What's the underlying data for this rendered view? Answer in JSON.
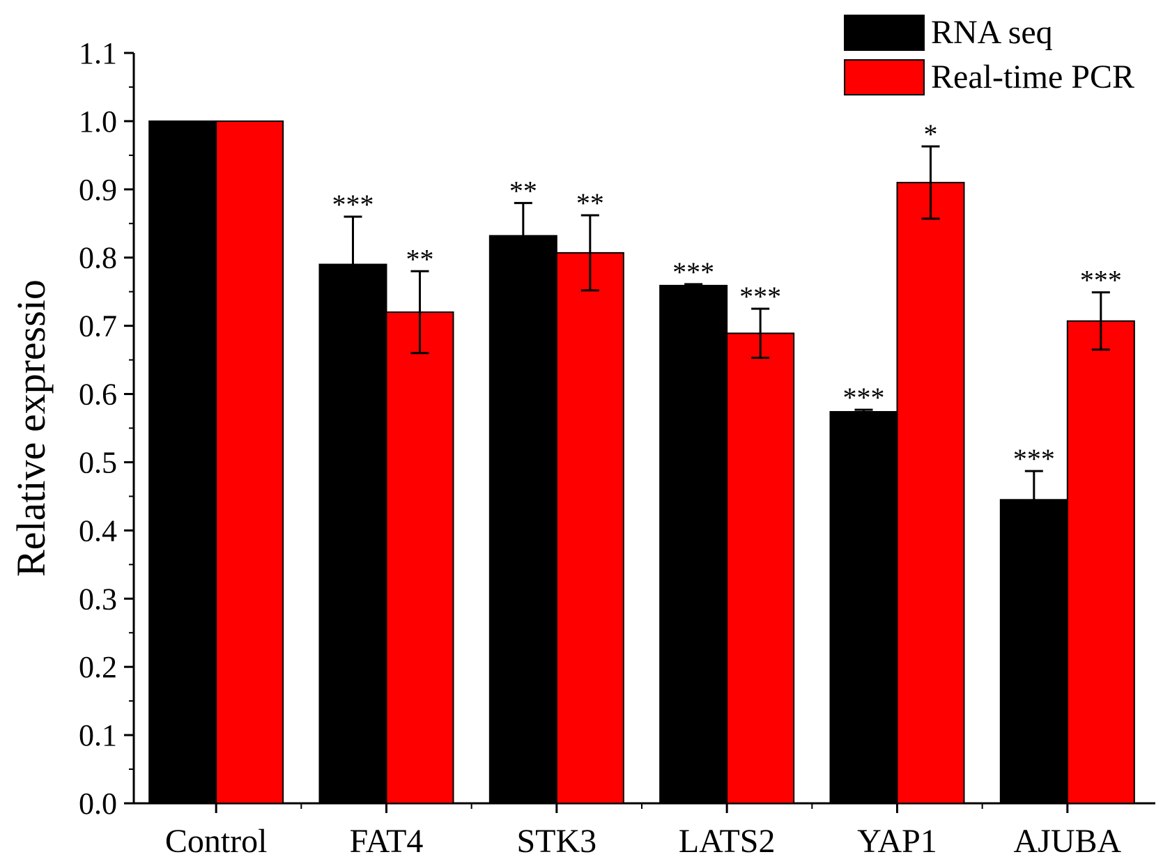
{
  "chart_data": {
    "type": "bar",
    "title": "",
    "xlabel": "",
    "ylabel": "Relative expressio",
    "ylim": [
      0,
      1.1
    ],
    "ytick_step": 0.1,
    "ytick_labels": [
      "0.0",
      "0.1",
      "0.2",
      "0.3",
      "0.4",
      "0.5",
      "0.6",
      "0.7",
      "0.8",
      "0.9",
      "1.0",
      "1.1"
    ],
    "grid": false,
    "legend_position": "top-right",
    "categories": [
      "Control",
      "FAT4",
      "STK3",
      "LATS2",
      "YAP1",
      "AJUBA"
    ],
    "series": [
      {
        "name": "RNA seq",
        "color": "#000000",
        "values": [
          1.0,
          0.79,
          0.832,
          0.759,
          0.574,
          0.445
        ],
        "errors": [
          0,
          0.07,
          0.048,
          0.002,
          0.003,
          0.042
        ],
        "significance": [
          "",
          "***",
          "**",
          "***",
          "***",
          "***"
        ]
      },
      {
        "name": "Real-time PCR",
        "color": "#ff0000",
        "values": [
          1.0,
          0.72,
          0.807,
          0.689,
          0.91,
          0.707
        ],
        "errors": [
          0,
          0.06,
          0.055,
          0.036,
          0.053,
          0.042
        ],
        "significance": [
          "",
          "**",
          "**",
          "***",
          "*",
          "***"
        ]
      }
    ]
  }
}
